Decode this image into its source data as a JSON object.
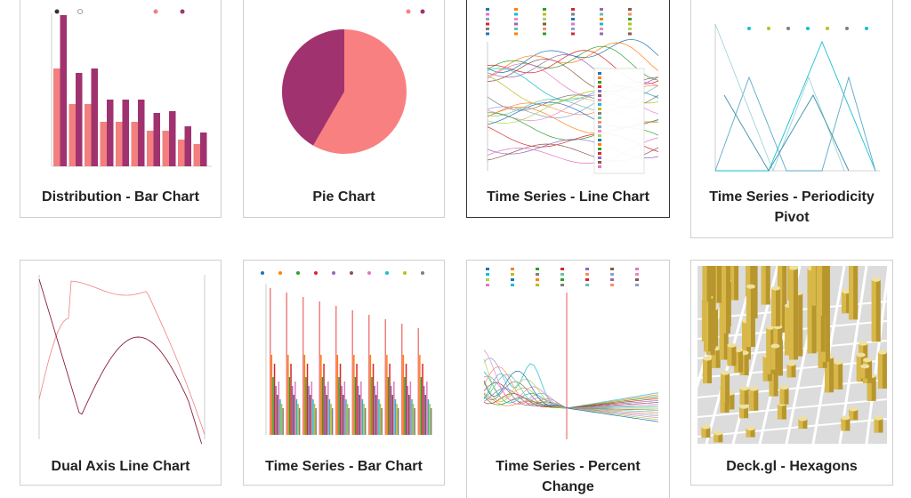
{
  "cards": [
    {
      "title": "Distribution - Bar Chart"
    },
    {
      "title": "Pie Chart"
    },
    {
      "title": "Time Series - Line Chart"
    },
    {
      "title": "Time Series - Periodicity Pivot"
    },
    {
      "title": "Dual Axis Line Chart"
    },
    {
      "title": "Time Series - Bar Chart"
    },
    {
      "title": "Time Series - Percent Change"
    },
    {
      "title": "Deck.gl - Hexagons"
    }
  ]
}
